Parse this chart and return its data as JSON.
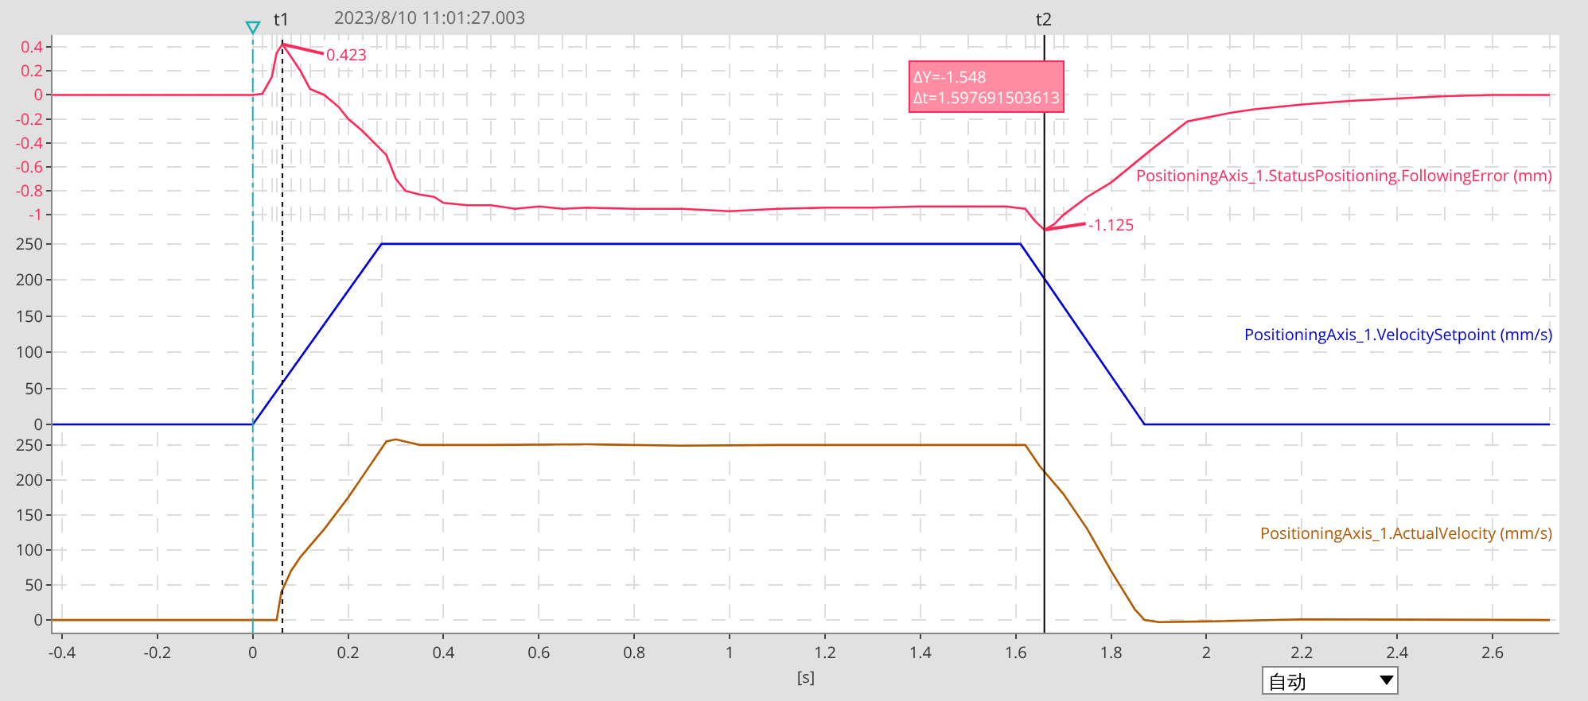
{
  "chart_data": [
    {
      "type": "line",
      "xlim": [
        -0.42,
        2.74
      ],
      "ylim": [
        -1.17,
        0.5
      ],
      "yticks": [
        0.4,
        0.2,
        0,
        -0.2,
        -0.4,
        -0.6,
        -0.8,
        -1
      ],
      "grid": true,
      "tick_labels": "y",
      "line_style": "solid",
      "marker": "none",
      "x": [
        -0.42,
        0,
        0.02,
        0.04,
        0.05,
        0.062,
        0.08,
        0.1,
        0.12,
        0.15,
        0.18,
        0.2,
        0.23,
        0.26,
        0.28,
        0.3,
        0.32,
        0.35,
        0.38,
        0.4,
        0.45,
        0.5,
        0.55,
        0.6,
        0.65,
        0.7,
        0.8,
        0.9,
        1.0,
        1.1,
        1.2,
        1.3,
        1.4,
        1.5,
        1.58,
        1.62,
        1.64,
        1.66,
        1.68,
        1.7,
        1.75,
        1.8,
        1.88,
        1.96,
        2.05,
        2.1,
        2.2,
        2.3,
        2.4,
        2.5,
        2.6,
        2.72
      ],
      "series": [
        {
          "name": "PositioningAxis_1.StatusPositioning.FollowingError (mm)",
          "color": "#ff2a5a",
          "values": [
            0,
            0,
            0.01,
            0.15,
            0.35,
            0.423,
            0.32,
            0.2,
            0.05,
            0,
            -0.1,
            -0.2,
            -0.3,
            -0.42,
            -0.5,
            -0.7,
            -0.8,
            -0.83,
            -0.85,
            -0.9,
            -0.92,
            -0.92,
            -0.95,
            -0.93,
            -0.95,
            -0.94,
            -0.95,
            -0.95,
            -0.97,
            -0.95,
            -0.94,
            -0.94,
            -0.93,
            -0.93,
            -0.93,
            -0.95,
            -1.05,
            -1.125,
            -1.08,
            -1.0,
            -0.85,
            -0.73,
            -0.47,
            -0.22,
            -0.15,
            -0.12,
            -0.08,
            -0.05,
            -0.03,
            -0.01,
            0,
            0
          ]
        }
      ],
      "ref_lines": [
        {
          "axis": "x",
          "value": 0,
          "label": null,
          "color": "#1ab0b0",
          "line_style": "dashdot"
        },
        {
          "axis": "x",
          "value": 0.062,
          "label": "t1",
          "color": "#000000",
          "line_style": "dotted"
        },
        {
          "axis": "x",
          "value": 1.66,
          "label": "t2",
          "color": "#000000",
          "line_style": "solid"
        }
      ],
      "annotations": [
        {
          "text": "0.423",
          "x": 0.062,
          "y": 0.423
        },
        {
          "text": "-1.125",
          "x": 1.66,
          "y": -1.125
        },
        "ΔY=-1.548\nΔt=1.597691503613",
        "2023/8/10 11:01:27.003"
      ]
    },
    {
      "type": "line",
      "xlim": [
        -0.42,
        2.74
      ],
      "ylim": [
        -11,
        262
      ],
      "yticks": [
        0,
        50,
        100,
        150,
        200,
        250
      ],
      "grid": true,
      "tick_labels": "y",
      "line_style": "solid",
      "marker": "none",
      "x": [
        -0.42,
        0,
        0.27,
        1.61,
        1.87,
        2.72
      ],
      "series": [
        {
          "name": "PositioningAxis_1.VelocitySetpoint (mm/s)",
          "color": "#0000dd",
          "values": [
            0,
            0,
            250,
            250,
            0,
            0
          ]
        }
      ],
      "ref_lines": [
        {
          "axis": "x",
          "value": 0,
          "label": null,
          "color": "#1ab0b0",
          "line_style": "dashdot"
        },
        {
          "axis": "x",
          "value": 0.062,
          "label": null,
          "color": "#000000",
          "line_style": "dotted"
        },
        {
          "axis": "x",
          "value": 1.66,
          "label": null,
          "color": "#000000",
          "line_style": "solid"
        }
      ]
    },
    {
      "type": "line",
      "xlim": [
        -0.42,
        2.74
      ],
      "xticks": [
        -0.4,
        -0.2,
        0,
        0.2,
        0.4,
        0.6,
        0.8,
        1,
        1.2,
        1.4,
        1.6,
        1.8,
        2,
        2.2,
        2.4,
        2.6
      ],
      "ylim": [
        -18,
        268
      ],
      "yticks": [
        0,
        50,
        100,
        150,
        200,
        250
      ],
      "grid": true,
      "xlabel": "[s]",
      "line_style": "solid",
      "marker": "none",
      "x": [
        -0.42,
        0.05,
        0.06,
        0.08,
        0.1,
        0.15,
        0.2,
        0.25,
        0.28,
        0.3,
        0.35,
        0.5,
        0.7,
        0.9,
        1.1,
        1.3,
        1.5,
        1.62,
        1.65,
        1.7,
        1.75,
        1.8,
        1.85,
        1.87,
        1.9,
        2.0,
        2.2,
        2.72
      ],
      "series": [
        {
          "name": "PositioningAxis_1.ActualVelocity (mm/s)",
          "color": "#b35900",
          "values": [
            0,
            0,
            40,
            70,
            90,
            130,
            175,
            225,
            255,
            258,
            250,
            250,
            251,
            249,
            250,
            250,
            250,
            250,
            220,
            180,
            130,
            70,
            15,
            0,
            -3,
            -2,
            1,
            0
          ]
        }
      ],
      "ref_lines": [
        {
          "axis": "x",
          "value": 0,
          "label": null,
          "color": "#1ab0b0",
          "line_style": "dashdot"
        },
        {
          "axis": "x",
          "value": 0.062,
          "label": null,
          "color": "#000000",
          "line_style": "dotted"
        },
        {
          "axis": "x",
          "value": 1.66,
          "label": null,
          "color": "#000000",
          "line_style": "solid"
        }
      ],
      "annotations": [
        "自动"
      ]
    }
  ]
}
